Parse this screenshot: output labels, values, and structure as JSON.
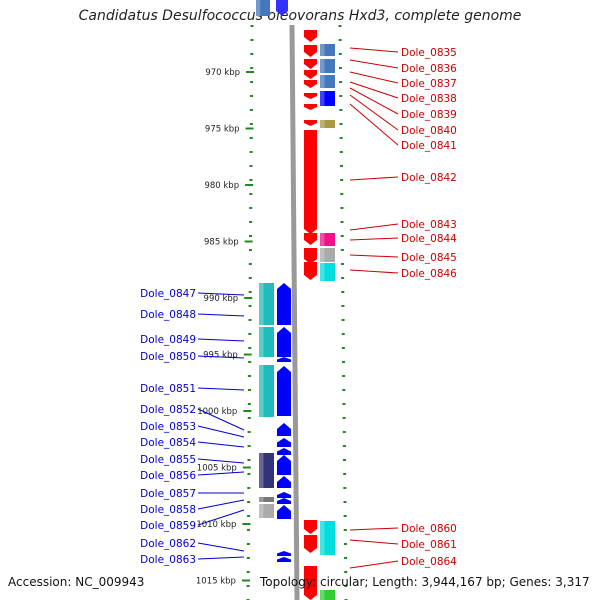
{
  "title": "Candidatus Desulfococcus oleovorans Hxd3, complete genome",
  "footer": {
    "accession": "Accession: NC_009943",
    "summary": "Topology: circular; Length: 3,944,167 bp; Genes: 3,317"
  },
  "scale": {
    "ticks": [
      {
        "label": "970 kbp",
        "kbp": 970
      },
      {
        "label": "975 kbp",
        "kbp": 975
      },
      {
        "label": "980 kbp",
        "kbp": 980
      },
      {
        "label": "985 kbp",
        "kbp": 985
      },
      {
        "label": "990 kbp",
        "kbp": 990
      },
      {
        "label": "995 kbp",
        "kbp": 995
      },
      {
        "label": "1000 kbp",
        "kbp": 1000
      },
      {
        "label": "1005 kbp",
        "kbp": 1005
      },
      {
        "label": "1010 kbp",
        "kbp": 1010
      },
      {
        "label": "1015 kbp",
        "kbp": 1015
      }
    ]
  },
  "genes_forward": [
    {
      "name": "Dole_0835",
      "color": "#4477bb"
    },
    {
      "name": "Dole_0836",
      "color": "#4477bb"
    },
    {
      "name": "Dole_0837",
      "color": "#4477bb"
    },
    {
      "name": "Dole_0838",
      "color": "#0000ff"
    },
    {
      "name": "Dole_0839",
      "color": "#ff0000"
    },
    {
      "name": "Dole_0840",
      "color": "#ff0000"
    },
    {
      "name": "Dole_0841",
      "color": "#aa9944"
    },
    {
      "name": "Dole_0842",
      "color": "#ff0000"
    },
    {
      "name": "Dole_0843",
      "color": "#ff0000"
    },
    {
      "name": "Dole_0844",
      "color": "#ee1188"
    },
    {
      "name": "Dole_0845",
      "color": "#aaaaaa"
    },
    {
      "name": "Dole_0846",
      "color": "#00dddd"
    },
    {
      "name": "Dole_0860",
      "color": "#ff0000"
    },
    {
      "name": "Dole_0861",
      "color": "#00dddd"
    },
    {
      "name": "Dole_0864",
      "color": "#ff0000"
    }
  ],
  "genes_reverse": [
    {
      "name": "Dole_0847",
      "color": "#22bbbb"
    },
    {
      "name": "Dole_0848",
      "color": "#0000ff"
    },
    {
      "name": "Dole_0849",
      "color": "#22bbbb"
    },
    {
      "name": "Dole_0850",
      "color": "#0000ff"
    },
    {
      "name": "Dole_0851",
      "color": "#22bbbb"
    },
    {
      "name": "Dole_0852",
      "color": "#0000ff"
    },
    {
      "name": "Dole_0853",
      "color": "#0000ff"
    },
    {
      "name": "Dole_0854",
      "color": "#0000ff"
    },
    {
      "name": "Dole_0855",
      "color": "#333377"
    },
    {
      "name": "Dole_0856",
      "color": "#0000ff"
    },
    {
      "name": "Dole_0857",
      "color": "#777777"
    },
    {
      "name": "Dole_0858",
      "color": "#aaaaaa"
    },
    {
      "name": "Dole_0859",
      "color": "#0000ff"
    },
    {
      "name": "Dole_0862",
      "color": "#0000ff"
    },
    {
      "name": "Dole_0863",
      "color": "#0000ff"
    }
  ]
}
